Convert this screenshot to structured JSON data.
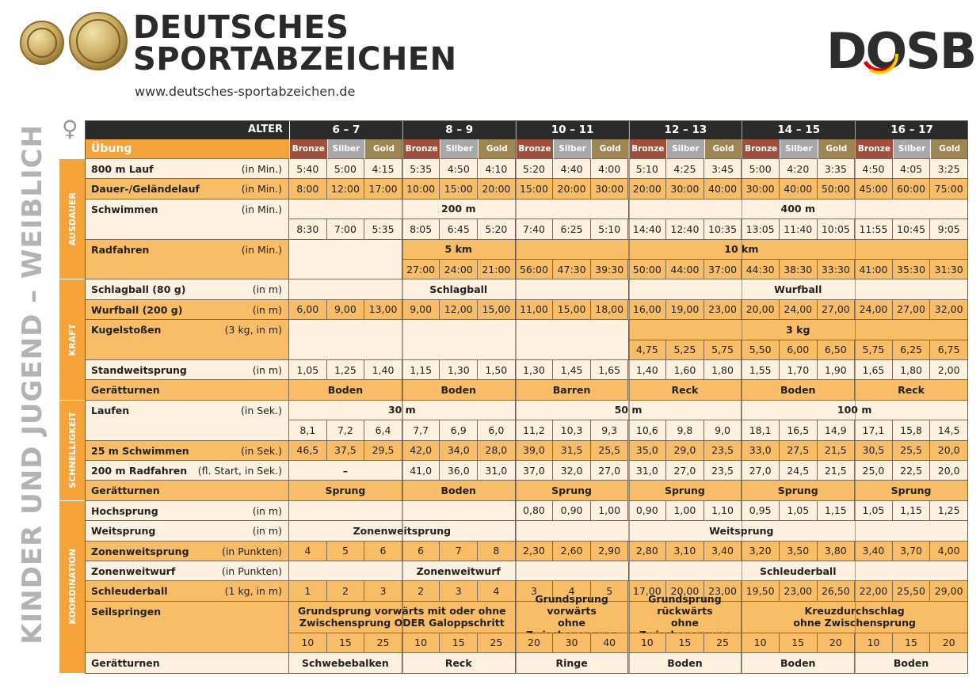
{
  "header": {
    "title_line1": "DEUTSCHES",
    "title_line2": "SPORTABZEICHEN",
    "url": "www.deutsches-sportabzeichen.de",
    "logo": "DOSB"
  },
  "side_label": "KINDER UND JUGEND – WEIBLICH",
  "gender_symbol": "♀",
  "table": {
    "age_label": "ALTER",
    "exercise_label": "Übung",
    "age_groups": [
      "6 – 7",
      "8 – 9",
      "10 – 11",
      "12 – 13",
      "14 – 15",
      "16 – 17"
    ],
    "levels": [
      "Bronze",
      "Silber",
      "Gold"
    ],
    "sections": [
      {
        "name": "AUSDAUER",
        "rows": [
          {
            "exercise": "800 m Lauf",
            "unit": "(in Min.)",
            "cells": [
              "5:40",
              "5:00",
              "4:15",
              "5:35",
              "4:50",
              "4:10",
              "5:20",
              "4:40",
              "4:00",
              "5:10",
              "4:25",
              "3:45",
              "5:00",
              "4:20",
              "3:35",
              "4:50",
              "4:05",
              "3:25"
            ]
          },
          {
            "exercise": "Dauer-/Geländelauf",
            "unit": "(in Min.)",
            "cells": [
              "8:00",
              "12:00",
              "17:00",
              "10:00",
              "15:00",
              "20:00",
              "15:00",
              "20:00",
              "30:00",
              "20:00",
              "30:00",
              "40:00",
              "30:00",
              "40:00",
              "50:00",
              "45:00",
              "60:00",
              "75:00"
            ]
          },
          {
            "exercise": "Schwimmen",
            "unit": "(in Min.)",
            "cells": [
              "200 m",
              "400 m"
            ]
          },
          {
            "cells": [
              "8:30",
              "7:00",
              "5:35",
              "8:05",
              "6:45",
              "5:20",
              "7:40",
              "6:25",
              "5:10",
              "14:40",
              "12:40",
              "10:35",
              "13:05",
              "11:40",
              "10:05",
              "11:55",
              "10:45",
              "9:05"
            ]
          },
          {
            "exercise": "Radfahren",
            "unit": "(in Min.)",
            "cells": [
              "5 km",
              "10 km"
            ]
          },
          {
            "cells": [
              "27:00",
              "24:00",
              "21:00",
              "56:00",
              "47:30",
              "39:30",
              "50:00",
              "44:00",
              "37:00",
              "44:30",
              "38:30",
              "33:30",
              "41:00",
              "35:30",
              "31:30"
            ]
          }
        ]
      },
      {
        "name": "KRAFT",
        "rows": [
          {
            "exercise": "Schlagball (80 g)",
            "unit": "(in m)",
            "cells": [
              "Schlagball",
              "Wurfball"
            ]
          },
          {
            "exercise": "Wurfball (200 g)",
            "unit": "(in m)",
            "cells": [
              "6,00",
              "9,00",
              "13,00",
              "9,00",
              "12,00",
              "15,00",
              "11,00",
              "15,00",
              "18,00",
              "16,00",
              "19,00",
              "23,00",
              "20,00",
              "24,00",
              "27,00",
              "24,00",
              "27,00",
              "32,00"
            ]
          },
          {
            "exercise": "Kugelstoßen",
            "unit": "(3 kg, in m)",
            "cells": [
              "3 kg"
            ]
          },
          {
            "cells": [
              "4,75",
              "5,25",
              "5,75",
              "5,50",
              "6,00",
              "6,50",
              "5,75",
              "6,25",
              "6,75"
            ]
          },
          {
            "exercise": "Standweitsprung",
            "unit": "(in m)",
            "cells": [
              "1,05",
              "1,25",
              "1,40",
              "1,15",
              "1,30",
              "1,50",
              "1,30",
              "1,45",
              "1,65",
              "1,40",
              "1,60",
              "1,80",
              "1,55",
              "1,70",
              "1,90",
              "1,65",
              "1,80",
              "2,00"
            ]
          },
          {
            "exercise": "Gerätturnen",
            "cells": [
              "Boden",
              "Boden",
              "Barren",
              "Reck",
              "Boden",
              "Reck"
            ]
          }
        ]
      },
      {
        "name": "SCHNELLIGKEIT",
        "rows": [
          {
            "exercise": "Laufen",
            "unit": "(in Sek.)",
            "cells": [
              "30 m",
              "50 m",
              "100 m"
            ]
          },
          {
            "cells": [
              "8,1",
              "7,2",
              "6,4",
              "7,7",
              "6,9",
              "6,0",
              "11,2",
              "10,3",
              "9,3",
              "10,6",
              "9,8",
              "9,0",
              "18,1",
              "16,5",
              "14,9",
              "17,1",
              "15,8",
              "14,5"
            ]
          },
          {
            "exercise": "25 m Schwimmen",
            "unit": "(in Sek.)",
            "cells": [
              "46,5",
              "37,5",
              "29,5",
              "42,0",
              "34,0",
              "28,0",
              "39,0",
              "31,5",
              "25,5",
              "35,0",
              "29,0",
              "23,5",
              "33,0",
              "27,5",
              "21,5",
              "30,5",
              "25,5",
              "20,0"
            ]
          },
          {
            "exercise": "200 m Radfahren",
            "unit": "(fl. Start, in Sek.)",
            "cells": [
              "–",
              "41,0",
              "36,0",
              "31,0",
              "37,0",
              "32,0",
              "27,0",
              "31,0",
              "27,0",
              "23,5",
              "27,0",
              "24,5",
              "21,5",
              "25,0",
              "22,5",
              "20,0"
            ]
          },
          {
            "exercise": "Gerätturnen",
            "cells": [
              "Sprung",
              "Boden",
              "Sprung",
              "Sprung",
              "Sprung",
              "Sprung"
            ]
          }
        ]
      },
      {
        "name": "KOORDINATION",
        "rows": [
          {
            "exercise": "Hochsprung",
            "unit": "(in m)",
            "cells": [
              "0,80",
              "0,90",
              "1,00",
              "0,90",
              "1,00",
              "1,10",
              "0,95",
              "1,05",
              "1,15",
              "1,05",
              "1,15",
              "1,25"
            ]
          },
          {
            "exercise": "Weitsprung",
            "unit": "(in m)",
            "cells": [
              "Zonenweitsprung",
              "Weitsprung"
            ]
          },
          {
            "exercise": "Zonenweitsprung",
            "unit": "(in Punkten)",
            "cells": [
              "4",
              "5",
              "6",
              "6",
              "7",
              "8",
              "2,30",
              "2,60",
              "2,90",
              "2,80",
              "3,10",
              "3,40",
              "3,20",
              "3,50",
              "3,80",
              "3,40",
              "3,70",
              "4,00"
            ]
          },
          {
            "exercise": "Zonenweitwurf",
            "unit": "(in Punkten)",
            "cells": [
              "Zonenweitwurf",
              "Schleuderball"
            ]
          },
          {
            "exercise": "Schleuderball",
            "unit": "(1 kg, in m)",
            "cells": [
              "1",
              "2",
              "3",
              "2",
              "3",
              "4",
              "3",
              "4",
              "5",
              "17,00",
              "20,00",
              "23,00",
              "19,50",
              "23,00",
              "26,50",
              "22,00",
              "25,50",
              "29,00"
            ]
          },
          {
            "exercise": "Seilspringen",
            "cells": [
              "Grundsprung vorwärts mit oder ohne\nZwischensprung ODER Galoppschritt",
              "Grundsprung vorwärts\nohne Zwischensprung",
              "Grundsprung rückwärts\nohne Zwischensprung",
              "Kreuzdurchschlag\nohne Zwischensprung"
            ]
          },
          {
            "cells": [
              "10",
              "15",
              "25",
              "10",
              "15",
              "25",
              "20",
              "30",
              "40",
              "10",
              "15",
              "25",
              "10",
              "15",
              "20",
              "10",
              "15",
              "20"
            ]
          },
          {
            "exercise": "Gerätturnen",
            "cells": [
              "Schwebebalken",
              "Reck",
              "Ringe",
              "Boden",
              "Boden",
              "Boden"
            ]
          }
        ]
      }
    ]
  }
}
